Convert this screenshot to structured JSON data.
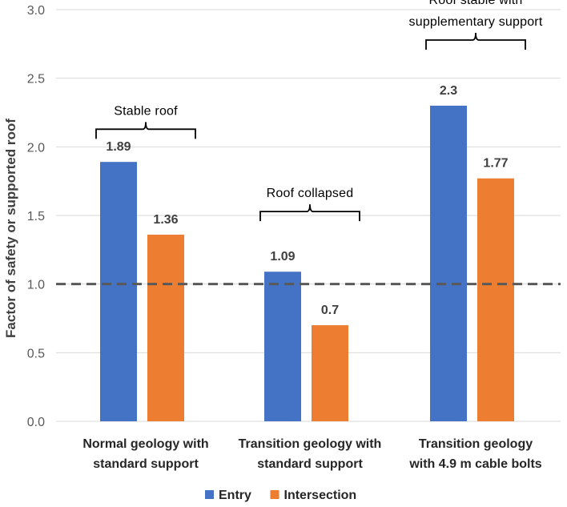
{
  "chart_data": {
    "type": "bar",
    "title": "",
    "xlabel": "",
    "ylabel": "Factor of safety or supported roof",
    "ylim": [
      0,
      3.0
    ],
    "yticks": [
      "0.0",
      "0.5",
      "1.0",
      "1.5",
      "2.0",
      "2.5",
      "3.0"
    ],
    "grid": true,
    "categories": [
      [
        "Normal geology with",
        "standard support"
      ],
      [
        "Transition geology with",
        "standard support"
      ],
      [
        "Transition geology",
        "with 4.9 m cable bolts"
      ]
    ],
    "series": [
      {
        "name": "Entry",
        "color": "#4472C4",
        "values": [
          1.89,
          1.09,
          2.3
        ],
        "labels": [
          "1.89",
          "1.09",
          "2.3"
        ]
      },
      {
        "name": "Intersection",
        "color": "#ED7D31",
        "values": [
          1.36,
          0.7,
          1.77
        ],
        "labels": [
          "1.36",
          "0.7",
          "1.77"
        ]
      }
    ],
    "reference_line": {
      "value": 1.0,
      "style": "dashed",
      "color": "#595959"
    },
    "annotations": [
      {
        "category": 0,
        "level": 2.0,
        "lines": [
          "Stable roof"
        ]
      },
      {
        "category": 1,
        "level": 1.4,
        "lines": [
          "Roof collapsed"
        ]
      },
      {
        "category": 2,
        "level": 2.65,
        "lines": [
          "Roof stable with",
          "supplementary support"
        ]
      }
    ],
    "legend": {
      "position": "bottom"
    }
  }
}
